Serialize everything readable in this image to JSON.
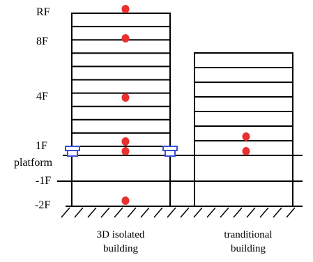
{
  "floor_labels": [
    "RF",
    "8F",
    "4F",
    "1F",
    "platform",
    "-1F",
    "-2F"
  ],
  "captions": {
    "isolated_line1": "3D isolated",
    "isolated_line2": "building",
    "traditional_line1": "tranditional",
    "traditional_line2": "building"
  },
  "colors": {
    "line": "#000000",
    "sensor": "#e8312f",
    "isolator": "#3a4fd8"
  },
  "icons": {
    "sensor": "red-sensor-dot",
    "isolator": "blue-isolation-bearing"
  },
  "isolated_building_stories_above_platform": 10,
  "traditional_building_stories": 7
}
